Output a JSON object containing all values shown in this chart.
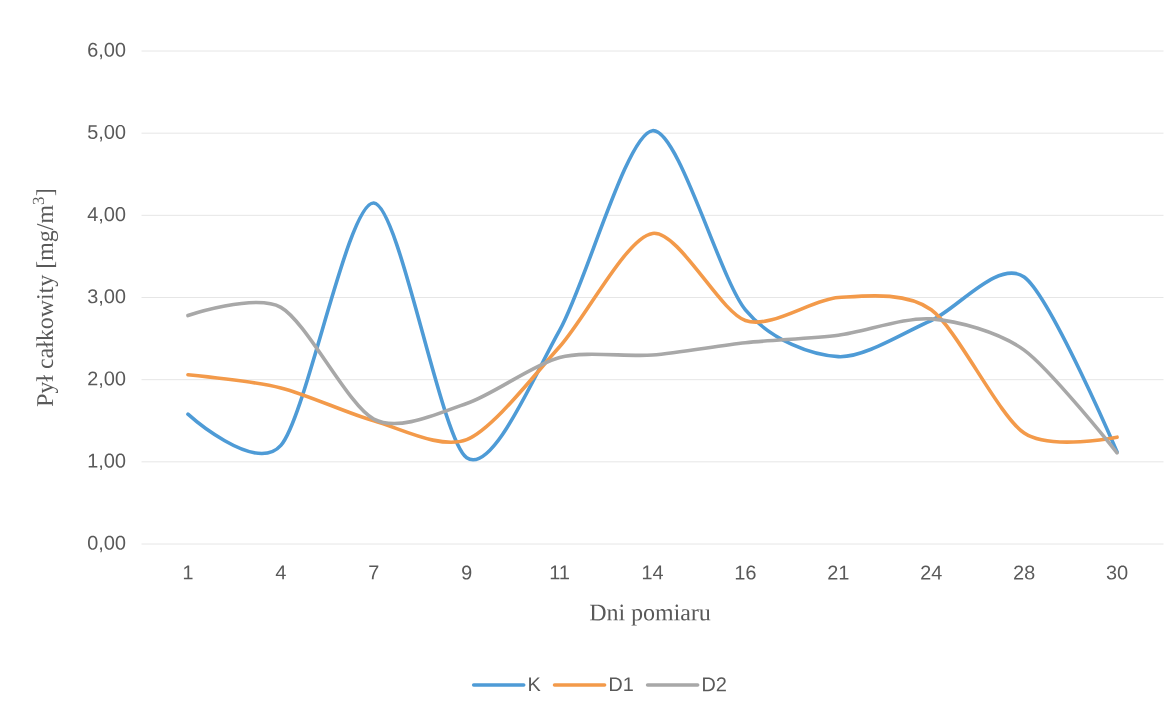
{
  "chart_data": {
    "type": "line",
    "xlabel": "Dni pomiaru",
    "ylabel": "Pył całkowity [mg/m$^{3}$]",
    "categories": [
      "1",
      "4",
      "7",
      "9",
      "11",
      "14",
      "16",
      "21",
      "24",
      "28",
      "30"
    ],
    "series": [
      {
        "name": "K",
        "color": "#4e9bd6",
        "values": [
          1.58,
          1.2,
          4.15,
          1.05,
          2.6,
          5.03,
          2.85,
          2.28,
          2.72,
          3.25,
          1.12
        ]
      },
      {
        "name": "D1",
        "color": "#f39a4a",
        "values": [
          2.06,
          1.9,
          1.5,
          1.27,
          2.4,
          3.78,
          2.72,
          3.0,
          2.85,
          1.35,
          1.3
        ]
      },
      {
        "name": "D2",
        "color": "#a8a8a8",
        "values": [
          2.78,
          2.88,
          1.52,
          1.71,
          2.27,
          2.3,
          2.45,
          2.54,
          2.74,
          2.36,
          1.11
        ]
      }
    ],
    "ylim": [
      0,
      6
    ],
    "yticks": [
      {
        "value": 0,
        "label": "0,00"
      },
      {
        "value": 1,
        "label": "1,00"
      },
      {
        "value": 2,
        "label": "2,00"
      },
      {
        "value": 3,
        "label": "3,00"
      },
      {
        "value": 4,
        "label": "4,00"
      },
      {
        "value": 5,
        "label": "5,00"
      },
      {
        "value": 6,
        "label": "6,00"
      }
    ],
    "grid": "y",
    "legend": "bottom",
    "line_style": "solid"
  }
}
